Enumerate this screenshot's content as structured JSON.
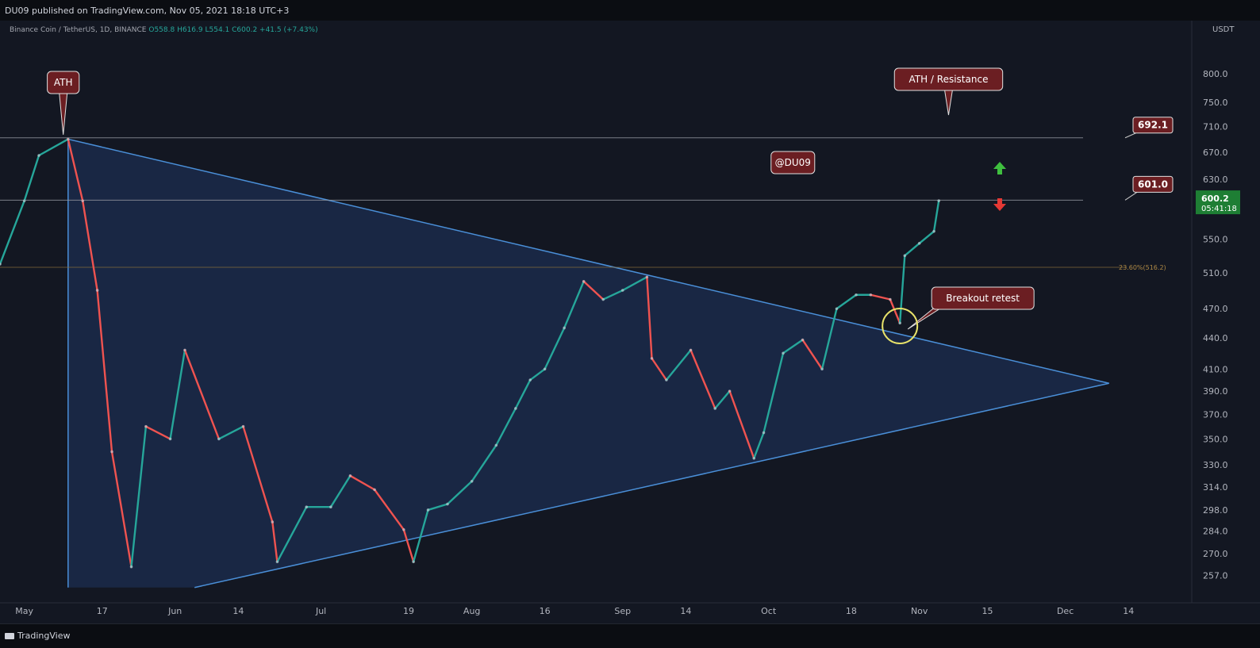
{
  "header": {
    "publisher": "DU09 published on TradingView.com, Nov 05, 2021 18:18 UTC+3"
  },
  "symbol_line": {
    "name": "Binance Coin / TetherUS, 1D, BINANCE",
    "ohlc": "O558.8  H616.9  L554.1  C600.2  +41.5 (+7.43%)"
  },
  "footer": {
    "brand": "TradingView"
  },
  "colors": {
    "bg": "#131722",
    "up": "#26a69a",
    "down": "#ef5350",
    "triangle": "#4a8fd8",
    "label_bg": "#6b1e22"
  },
  "chart_data": {
    "type": "candlestick",
    "title": "Binance Coin / TetherUS, 1D, BINANCE",
    "y_axis": {
      "currency": "USDT",
      "scale": "log",
      "ticks": [
        800.0,
        750.0,
        710.0,
        670.0,
        630.0,
        600.0,
        550.0,
        510.0,
        470.0,
        440.0,
        410.0,
        390.0,
        370.0,
        350.0,
        330.0,
        314.0,
        298.0,
        284.0,
        270.0,
        257.0
      ],
      "range": [
        245,
        880
      ]
    },
    "x_axis": {
      "ticks": [
        {
          "label": "May",
          "date": "2021-05-01"
        },
        {
          "label": "17",
          "date": "2021-05-17"
        },
        {
          "label": "Jun",
          "date": "2021-06-01"
        },
        {
          "label": "14",
          "date": "2021-06-14"
        },
        {
          "label": "Jul",
          "date": "2021-07-01"
        },
        {
          "label": "19",
          "date": "2021-07-19"
        },
        {
          "label": "Aug",
          "date": "2021-08-01"
        },
        {
          "label": "16",
          "date": "2021-08-16"
        },
        {
          "label": "Sep",
          "date": "2021-09-01"
        },
        {
          "label": "14",
          "date": "2021-09-14"
        },
        {
          "label": "Oct",
          "date": "2021-10-01"
        },
        {
          "label": "18",
          "date": "2021-10-18"
        },
        {
          "label": "Nov",
          "date": "2021-11-01"
        },
        {
          "label": "15",
          "date": "2021-11-15"
        },
        {
          "label": "Dec",
          "date": "2021-12-01"
        },
        {
          "label": "14",
          "date": "2021-12-14"
        }
      ],
      "range": [
        "2021-04-26",
        "2021-12-27"
      ]
    },
    "close_series": [
      {
        "date": "2021-04-26",
        "close": 520
      },
      {
        "date": "2021-05-01",
        "close": 600
      },
      {
        "date": "2021-05-04",
        "close": 665
      },
      {
        "date": "2021-05-10",
        "close": 690
      },
      {
        "date": "2021-05-13",
        "close": 600
      },
      {
        "date": "2021-05-16",
        "close": 490
      },
      {
        "date": "2021-05-19",
        "close": 340
      },
      {
        "date": "2021-05-23",
        "close": 262
      },
      {
        "date": "2021-05-26",
        "close": 360
      },
      {
        "date": "2021-05-31",
        "close": 350
      },
      {
        "date": "2021-06-03",
        "close": 428
      },
      {
        "date": "2021-06-10",
        "close": 350
      },
      {
        "date": "2021-06-15",
        "close": 360
      },
      {
        "date": "2021-06-21",
        "close": 290
      },
      {
        "date": "2021-06-22",
        "close": 265
      },
      {
        "date": "2021-06-28",
        "close": 300
      },
      {
        "date": "2021-07-03",
        "close": 300
      },
      {
        "date": "2021-07-07",
        "close": 322
      },
      {
        "date": "2021-07-12",
        "close": 312
      },
      {
        "date": "2021-07-18",
        "close": 285
      },
      {
        "date": "2021-07-20",
        "close": 265
      },
      {
        "date": "2021-07-23",
        "close": 298
      },
      {
        "date": "2021-07-27",
        "close": 302
      },
      {
        "date": "2021-08-01",
        "close": 318
      },
      {
        "date": "2021-08-06",
        "close": 345
      },
      {
        "date": "2021-08-10",
        "close": 375
      },
      {
        "date": "2021-08-13",
        "close": 400
      },
      {
        "date": "2021-08-16",
        "close": 410
      },
      {
        "date": "2021-08-20",
        "close": 450
      },
      {
        "date": "2021-08-24",
        "close": 500
      },
      {
        "date": "2021-08-28",
        "close": 480
      },
      {
        "date": "2021-09-01",
        "close": 490
      },
      {
        "date": "2021-09-06",
        "close": 505
      },
      {
        "date": "2021-09-07",
        "close": 420
      },
      {
        "date": "2021-09-10",
        "close": 400
      },
      {
        "date": "2021-09-15",
        "close": 428
      },
      {
        "date": "2021-09-20",
        "close": 375
      },
      {
        "date": "2021-09-23",
        "close": 390
      },
      {
        "date": "2021-09-28",
        "close": 335
      },
      {
        "date": "2021-09-30",
        "close": 355
      },
      {
        "date": "2021-10-04",
        "close": 425
      },
      {
        "date": "2021-10-08",
        "close": 438
      },
      {
        "date": "2021-10-12",
        "close": 410
      },
      {
        "date": "2021-10-15",
        "close": 470
      },
      {
        "date": "2021-10-19",
        "close": 485
      },
      {
        "date": "2021-10-22",
        "close": 485
      },
      {
        "date": "2021-10-26",
        "close": 480
      },
      {
        "date": "2021-10-28",
        "close": 455
      },
      {
        "date": "2021-10-29",
        "close": 530
      },
      {
        "date": "2021-11-01",
        "close": 545
      },
      {
        "date": "2021-11-04",
        "close": 560
      },
      {
        "date": "2021-11-05",
        "close": 600.2
      }
    ],
    "horizontal_lines": [
      {
        "label": "692.1",
        "value": 692.1
      },
      {
        "label": "601.0",
        "value": 601.0
      },
      {
        "label": "23.60%(516.2)",
        "value": 516.2
      }
    ],
    "current_price": {
      "price": "600.2",
      "countdown": "05:41:18"
    },
    "annotations": [
      {
        "text": "ATH",
        "date": "2021-05-09",
        "value": 692
      },
      {
        "text": "ATH / Resistance",
        "date": "2021-11-07",
        "value": 692
      },
      {
        "text": "@DU09",
        "date": "2021-10-06",
        "value": 640
      },
      {
        "text": "Breakout retest",
        "date": "2021-10-28",
        "value": 452
      }
    ],
    "triangle": {
      "upper": [
        {
          "date": "2021-05-10",
          "value": 690
        },
        {
          "date": "2021-12-10",
          "value": 397
        }
      ],
      "lower": [
        {
          "date": "2021-06-05",
          "value": 250
        },
        {
          "date": "2021-12-10",
          "value": 397
        }
      ],
      "left": [
        {
          "date": "2021-05-10",
          "value": 690
        },
        {
          "date": "2021-05-10",
          "value": 250
        }
      ]
    },
    "legend": "none",
    "grid": false
  }
}
